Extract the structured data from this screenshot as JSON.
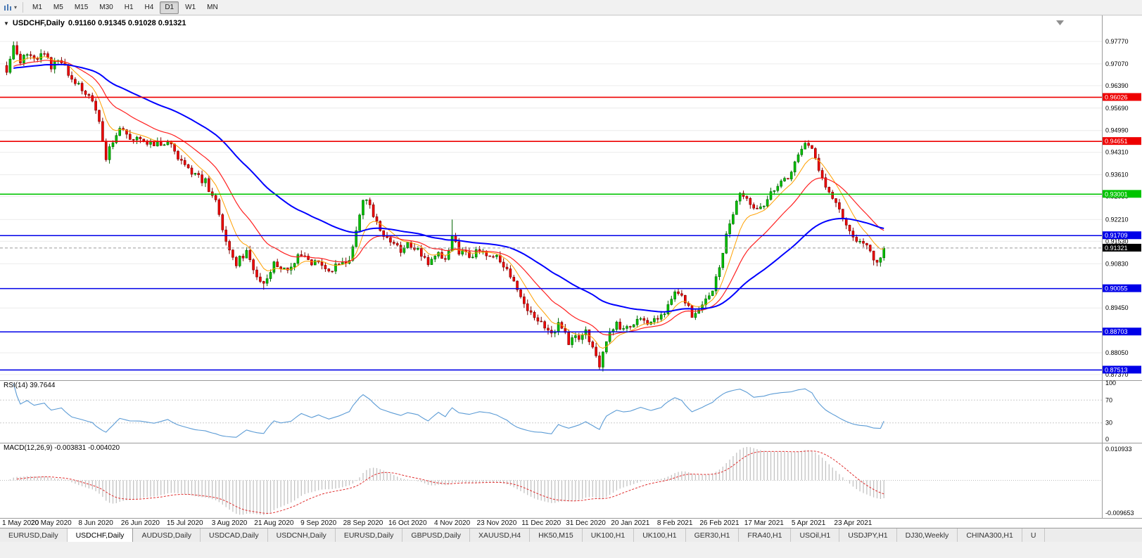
{
  "toolbar": {
    "timeframes": [
      "M1",
      "M5",
      "M15",
      "M30",
      "H1",
      "H4",
      "D1",
      "W1",
      "MN"
    ],
    "active_timeframe": "D1"
  },
  "chart": {
    "title": "USDCHF,Daily",
    "ohlc_text": "0.91160 0.91345 0.91028 0.91321"
  },
  "indicators": {
    "rsi": {
      "label": "RSI(14) 39.7644",
      "period": 14,
      "levels": [
        70,
        30
      ],
      "scale": [
        {
          "v": 100,
          "label": "100"
        },
        {
          "v": 70,
          "label": "70"
        },
        {
          "v": 30,
          "label": "30"
        },
        {
          "v": 0,
          "label": "0"
        }
      ]
    },
    "macd": {
      "label": "MACD(12,26,9) -0.003831 -0.004020",
      "scale_max_label": "0.010933",
      "scale_min_label": "-0.009653"
    }
  },
  "price_scale": {
    "ticks": [
      {
        "v": 0.9777,
        "label": "0.97770"
      },
      {
        "v": 0.9707,
        "label": "0.97070"
      },
      {
        "v": 0.9639,
        "label": "0.96390"
      },
      {
        "v": 0.9569,
        "label": "0.95690"
      },
      {
        "v": 0.9499,
        "label": "0.94990"
      },
      {
        "v": 0.9431,
        "label": "0.94310"
      },
      {
        "v": 0.9361,
        "label": "0.93610"
      },
      {
        "v": 0.9293,
        "label": "0.92930"
      },
      {
        "v": 0.9221,
        "label": "0.92210"
      },
      {
        "v": 0.9153,
        "label": "0.91530"
      },
      {
        "v": 0.9083,
        "label": "0.90830"
      },
      {
        "v": 0.8945,
        "label": "0.89450"
      },
      {
        "v": 0.8805,
        "label": "0.88050"
      },
      {
        "v": 0.8737,
        "label": "0.87370"
      }
    ]
  },
  "chart_data": {
    "type": "candlestick",
    "symbol": "USDCHF",
    "timeframe": "Daily",
    "bars": 257,
    "ohlc_current": {
      "open": 0.9116,
      "high": 0.91345,
      "low": 0.91028,
      "close": 0.91321
    },
    "price_range": {
      "top": 0.9777,
      "bottom": 0.8737
    },
    "price_anchors": [
      [
        0,
        0.969
      ],
      [
        2,
        0.9758
      ],
      [
        4,
        0.9718
      ],
      [
        6,
        0.974
      ],
      [
        8,
        0.9722
      ],
      [
        11,
        0.9738
      ],
      [
        13,
        0.97
      ],
      [
        16,
        0.9716
      ],
      [
        19,
        0.9652
      ],
      [
        22,
        0.9628
      ],
      [
        25,
        0.96
      ],
      [
        27,
        0.952
      ],
      [
        29,
        0.9418
      ],
      [
        31,
        0.9462
      ],
      [
        33,
        0.9514
      ],
      [
        36,
        0.9478
      ],
      [
        39,
        0.9476
      ],
      [
        43,
        0.9452
      ],
      [
        47,
        0.9468
      ],
      [
        50,
        0.942
      ],
      [
        52,
        0.9396
      ],
      [
        55,
        0.9358
      ],
      [
        58,
        0.9338
      ],
      [
        61,
        0.9276
      ],
      [
        63,
        0.9188
      ],
      [
        65,
        0.9128
      ],
      [
        67,
        0.9086
      ],
      [
        70,
        0.9122
      ],
      [
        73,
        0.9042
      ],
      [
        75,
        0.9012
      ],
      [
        78,
        0.9088
      ],
      [
        80,
        0.9058
      ],
      [
        83,
        0.9068
      ],
      [
        86,
        0.9118
      ],
      [
        89,
        0.9082
      ],
      [
        91,
        0.9098
      ],
      [
        94,
        0.9064
      ],
      [
        97,
        0.908
      ],
      [
        100,
        0.9102
      ],
      [
        102,
        0.9176
      ],
      [
        104,
        0.9288
      ],
      [
        106,
        0.9258
      ],
      [
        109,
        0.9186
      ],
      [
        112,
        0.9154
      ],
      [
        115,
        0.9126
      ],
      [
        117,
        0.9146
      ],
      [
        120,
        0.913
      ],
      [
        123,
        0.9076
      ],
      [
        126,
        0.9128
      ],
      [
        128,
        0.9092
      ],
      [
        130,
        0.9162
      ],
      [
        132,
        0.912
      ],
      [
        135,
        0.9106
      ],
      [
        138,
        0.9124
      ],
      [
        141,
        0.9116
      ],
      [
        143,
        0.9104
      ],
      [
        146,
        0.907
      ],
      [
        149,
        0.8996
      ],
      [
        152,
        0.894
      ],
      [
        154,
        0.8906
      ],
      [
        156,
        0.8898
      ],
      [
        159,
        0.8856
      ],
      [
        161,
        0.8894
      ],
      [
        164,
        0.884
      ],
      [
        167,
        0.8854
      ],
      [
        169,
        0.8868
      ],
      [
        171,
        0.8826
      ],
      [
        173,
        0.8766
      ],
      [
        175,
        0.8844
      ],
      [
        178,
        0.8894
      ],
      [
        180,
        0.888
      ],
      [
        182,
        0.8886
      ],
      [
        185,
        0.8914
      ],
      [
        188,
        0.8896
      ],
      [
        191,
        0.8914
      ],
      [
        195,
        0.9
      ],
      [
        197,
        0.8988
      ],
      [
        200,
        0.8926
      ],
      [
        203,
        0.8958
      ],
      [
        206,
        0.9
      ],
      [
        208,
        0.9074
      ],
      [
        210,
        0.9168
      ],
      [
        212,
        0.9238
      ],
      [
        214,
        0.9298
      ],
      [
        216,
        0.9278
      ],
      [
        218,
        0.9246
      ],
      [
        221,
        0.9268
      ],
      [
        223,
        0.9308
      ],
      [
        226,
        0.9344
      ],
      [
        229,
        0.9364
      ],
      [
        231,
        0.9418
      ],
      [
        233,
        0.9454
      ],
      [
        235,
        0.9436
      ],
      [
        237,
        0.938
      ],
      [
        239,
        0.933
      ],
      [
        242,
        0.9274
      ],
      [
        245,
        0.9208
      ],
      [
        247,
        0.9168
      ],
      [
        249,
        0.9146
      ],
      [
        251,
        0.9136
      ],
      [
        253,
        0.91
      ],
      [
        255,
        0.9096
      ],
      [
        256,
        0.9132
      ]
    ],
    "spikes": [
      {
        "i": 2,
        "high": 0.9777
      },
      {
        "i": 75,
        "low": 0.9002
      },
      {
        "i": 130,
        "high": 0.9221
      },
      {
        "i": 173,
        "low": 0.8757
      },
      {
        "i": 233,
        "high": 0.9468
      },
      {
        "i": 253,
        "low": 0.9078
      }
    ],
    "horizontal_lines": [
      {
        "value": 0.96026,
        "label": "0.96026",
        "color": "#ee0000"
      },
      {
        "value": 0.94651,
        "label": "0.94651",
        "color": "#ee0000"
      },
      {
        "value": 0.93001,
        "label": "0.93001",
        "color": "#00c400"
      },
      {
        "value": 0.91709,
        "label": "0.91709",
        "color": "#0000e8"
      },
      {
        "value": 0.90055,
        "label": "0.90055",
        "color": "#0000e8"
      },
      {
        "value": 0.88703,
        "label": "0.88703",
        "color": "#0000e8"
      },
      {
        "value": 0.87513,
        "label": "0.87513",
        "color": "#0000e8"
      }
    ],
    "current_price": {
      "value": 0.91321,
      "label": "0.91321",
      "color": "#000000"
    },
    "moving_averages": [
      {
        "period": 8,
        "color": "#ffa000",
        "width": 1
      },
      {
        "period": 20,
        "color": "#ff2020",
        "width": 1.2
      },
      {
        "period": 55,
        "color": "#0000ff",
        "width": 2
      }
    ],
    "candle_colors": {
      "up": "#00c000",
      "up_border": "#006600",
      "down": "#ee0000",
      "down_border": "#7d0000"
    },
    "date_labels": [
      {
        "i": 0,
        "label": "1 May 2020"
      },
      {
        "i": 13,
        "label": "20 May 2020"
      },
      {
        "i": 26,
        "label": "8 Jun 2020"
      },
      {
        "i": 39,
        "label": "26 Jun 2020"
      },
      {
        "i": 52,
        "label": "15 Jul 2020"
      },
      {
        "i": 65,
        "label": "3 Aug 2020"
      },
      {
        "i": 78,
        "label": "21 Aug 2020"
      },
      {
        "i": 91,
        "label": "9 Sep 2020"
      },
      {
        "i": 104,
        "label": "28 Sep 2020"
      },
      {
        "i": 117,
        "label": "16 Oct 2020"
      },
      {
        "i": 130,
        "label": "4 Nov 2020"
      },
      {
        "i": 143,
        "label": "23 Nov 2020"
      },
      {
        "i": 156,
        "label": "11 Dec 2020"
      },
      {
        "i": 169,
        "label": "31 Dec 2020"
      },
      {
        "i": 182,
        "label": "20 Jan 2021"
      },
      {
        "i": 195,
        "label": "8 Feb 2021"
      },
      {
        "i": 208,
        "label": "26 Feb 2021"
      },
      {
        "i": 221,
        "label": "17 Mar 2021"
      },
      {
        "i": 234,
        "label": "5 Apr 2021"
      },
      {
        "i": 247,
        "label": "23 Apr 2021"
      }
    ]
  },
  "tabs": {
    "active_index": 1,
    "items": [
      {
        "label": "EURUSD,Daily"
      },
      {
        "label": "USDCHF,Daily"
      },
      {
        "label": "AUDUSD,Daily"
      },
      {
        "label": "USDCAD,Daily"
      },
      {
        "label": "USDCNH,Daily"
      },
      {
        "label": "EURUSD,Daily"
      },
      {
        "label": "GBPUSD,Daily"
      },
      {
        "label": "XAUUSD,H4"
      },
      {
        "label": "HK50,M15"
      },
      {
        "label": "UK100,H1"
      },
      {
        "label": "UK100,H1"
      },
      {
        "label": "GER30,H1"
      },
      {
        "label": "FRA40,H1"
      },
      {
        "label": "USOil,H1"
      },
      {
        "label": "USDJPY,H1"
      },
      {
        "label": "DJ30,Weekly"
      },
      {
        "label": "CHINA300,H1"
      },
      {
        "label": "U"
      }
    ]
  }
}
